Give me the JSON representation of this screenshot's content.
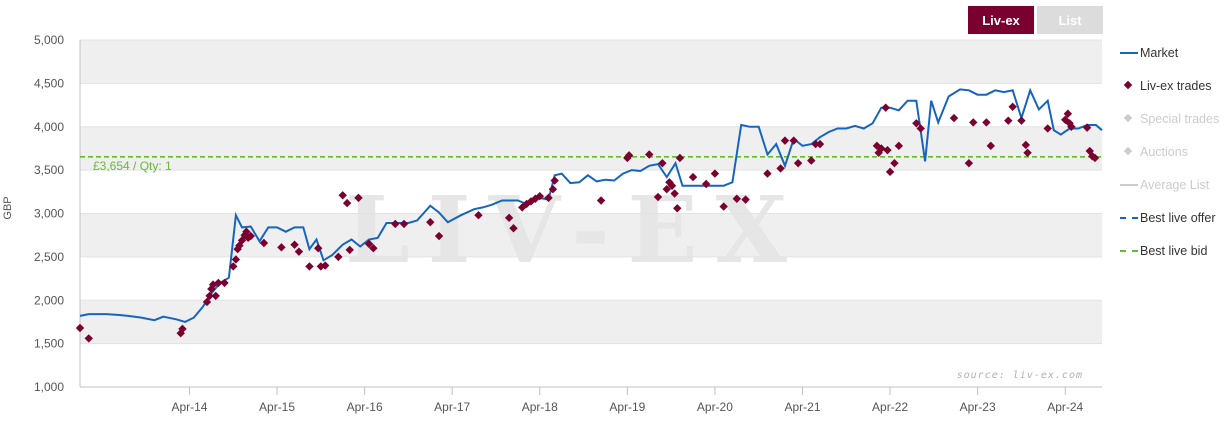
{
  "tabs": {
    "active": "Liv-ex",
    "inactive": "List"
  },
  "colors": {
    "market": "#1565c0",
    "trades": "#7a0030",
    "bid": "#66bb33",
    "muted": "#cccccc",
    "band": "#efefef",
    "tab_active": "#7a0030",
    "tab_inactive": "#dcdcdc"
  },
  "legend": [
    {
      "label": "Market",
      "symbol": "line",
      "color": "#1565c0",
      "active": true
    },
    {
      "label": "Liv-ex trades",
      "symbol": "diamond",
      "color": "#7a0030",
      "active": true
    },
    {
      "label": "Special trades",
      "symbol": "diamond",
      "color": "#cccccc",
      "active": false
    },
    {
      "label": "Auctions",
      "symbol": "diamond",
      "color": "#cccccc",
      "active": false
    },
    {
      "label": "Average List",
      "symbol": "line",
      "color": "#cccccc",
      "active": false
    },
    {
      "label": "Best live offer",
      "symbol": "dash",
      "color": "#1565c0",
      "active": true
    },
    {
      "label": "Best live bid",
      "symbol": "dash",
      "color": "#66bb33",
      "active": true
    }
  ],
  "watermark": "LIV-EX",
  "source": "source: liv-ex.com",
  "bid_label": "£3,654 / Qty: 1",
  "chart_data": {
    "type": "line",
    "ylabel": "GBP",
    "ylim": [
      1000,
      5000
    ],
    "yticks": [
      1000,
      1500,
      2000,
      2500,
      3000,
      3500,
      4000,
      4500,
      5000
    ],
    "ytick_labels": [
      "1,000",
      "1,500",
      "2,000",
      "2,500",
      "3,000",
      "3,500",
      "4,000",
      "4,500",
      "5,000"
    ],
    "xlim": [
      2013.0,
      2024.67
    ],
    "xticks": [
      2014.25,
      2015.25,
      2016.25,
      2017.25,
      2018.25,
      2019.25,
      2020.25,
      2021.25,
      2022.25,
      2023.25,
      2024.25
    ],
    "xtick_labels": [
      "Apr-14",
      "Apr-15",
      "Apr-16",
      "Apr-17",
      "Apr-18",
      "Apr-19",
      "Apr-20",
      "Apr-21",
      "Apr-22",
      "Apr-23",
      "Apr-24"
    ],
    "grid": true,
    "legend_position": "right",
    "best_live_bid": 3654,
    "series": [
      {
        "name": "Market",
        "kind": "line",
        "points": [
          [
            2013.0,
            1820
          ],
          [
            2013.1,
            1840
          ],
          [
            2013.3,
            1840
          ],
          [
            2013.45,
            1830
          ],
          [
            2013.55,
            1820
          ],
          [
            2013.7,
            1800
          ],
          [
            2013.85,
            1770
          ],
          [
            2013.95,
            1810
          ],
          [
            2014.1,
            1780
          ],
          [
            2014.2,
            1750
          ],
          [
            2014.3,
            1800
          ],
          [
            2014.4,
            1920
          ],
          [
            2014.5,
            2080
          ],
          [
            2014.6,
            2200
          ],
          [
            2014.7,
            2260
          ],
          [
            2014.78,
            2980
          ],
          [
            2014.85,
            2840
          ],
          [
            2014.95,
            2850
          ],
          [
            2015.05,
            2680
          ],
          [
            2015.15,
            2840
          ],
          [
            2015.25,
            2840
          ],
          [
            2015.35,
            2790
          ],
          [
            2015.45,
            2840
          ],
          [
            2015.55,
            2840
          ],
          [
            2015.62,
            2590
          ],
          [
            2015.7,
            2700
          ],
          [
            2015.78,
            2460
          ],
          [
            2015.88,
            2520
          ],
          [
            2016.0,
            2640
          ],
          [
            2016.1,
            2700
          ],
          [
            2016.2,
            2620
          ],
          [
            2016.3,
            2700
          ],
          [
            2016.4,
            2720
          ],
          [
            2016.5,
            2890
          ],
          [
            2016.6,
            2890
          ],
          [
            2016.75,
            2890
          ],
          [
            2016.85,
            2920
          ],
          [
            2017.0,
            3090
          ],
          [
            2017.1,
            3010
          ],
          [
            2017.2,
            2900
          ],
          [
            2017.35,
            2980
          ],
          [
            2017.5,
            3050
          ],
          [
            2017.6,
            3070
          ],
          [
            2017.7,
            3100
          ],
          [
            2017.82,
            3150
          ],
          [
            2018.0,
            3150
          ],
          [
            2018.1,
            3110
          ],
          [
            2018.2,
            3190
          ],
          [
            2018.35,
            3160
          ],
          [
            2018.42,
            3440
          ],
          [
            2018.5,
            3460
          ],
          [
            2018.6,
            3350
          ],
          [
            2018.7,
            3360
          ],
          [
            2018.8,
            3440
          ],
          [
            2018.9,
            3370
          ],
          [
            2019.0,
            3390
          ],
          [
            2019.1,
            3380
          ],
          [
            2019.2,
            3460
          ],
          [
            2019.3,
            3500
          ],
          [
            2019.4,
            3490
          ],
          [
            2019.5,
            3550
          ],
          [
            2019.6,
            3570
          ],
          [
            2019.7,
            3420
          ],
          [
            2019.8,
            3580
          ],
          [
            2019.88,
            3320
          ],
          [
            2020.0,
            3320
          ],
          [
            2020.1,
            3320
          ],
          [
            2020.25,
            3320
          ],
          [
            2020.35,
            3320
          ],
          [
            2020.45,
            3360
          ],
          [
            2020.55,
            4020
          ],
          [
            2020.65,
            4000
          ],
          [
            2020.75,
            4000
          ],
          [
            2020.85,
            3680
          ],
          [
            2020.95,
            3800
          ],
          [
            2021.05,
            3550
          ],
          [
            2021.15,
            3860
          ],
          [
            2021.25,
            3780
          ],
          [
            2021.35,
            3800
          ],
          [
            2021.45,
            3880
          ],
          [
            2021.55,
            3940
          ],
          [
            2021.65,
            3980
          ],
          [
            2021.75,
            3980
          ],
          [
            2021.85,
            4010
          ],
          [
            2021.95,
            3980
          ],
          [
            2022.05,
            4040
          ],
          [
            2022.15,
            4220
          ],
          [
            2022.25,
            4220
          ],
          [
            2022.35,
            4190
          ],
          [
            2022.45,
            4300
          ],
          [
            2022.55,
            4300
          ],
          [
            2022.65,
            3600
          ],
          [
            2022.72,
            4300
          ],
          [
            2022.8,
            4050
          ],
          [
            2022.92,
            4350
          ],
          [
            2023.05,
            4430
          ],
          [
            2023.15,
            4420
          ],
          [
            2023.25,
            4370
          ],
          [
            2023.35,
            4370
          ],
          [
            2023.45,
            4420
          ],
          [
            2023.55,
            4400
          ],
          [
            2023.65,
            4420
          ],
          [
            2023.75,
            4100
          ],
          [
            2023.85,
            4420
          ],
          [
            2023.95,
            4200
          ],
          [
            2024.05,
            4300
          ],
          [
            2024.12,
            3960
          ],
          [
            2024.2,
            3910
          ],
          [
            2024.3,
            3980
          ],
          [
            2024.4,
            3980
          ],
          [
            2024.5,
            4020
          ],
          [
            2024.6,
            4020
          ],
          [
            2024.67,
            3960
          ]
        ]
      },
      {
        "name": "Liv-ex trades",
        "kind": "scatter",
        "points": [
          [
            2013.0,
            1680
          ],
          [
            2013.1,
            1560
          ],
          [
            2014.15,
            1620
          ],
          [
            2014.17,
            1670
          ],
          [
            2014.45,
            1980
          ],
          [
            2014.48,
            2050
          ],
          [
            2014.5,
            2130
          ],
          [
            2014.52,
            2180
          ],
          [
            2014.55,
            2050
          ],
          [
            2014.58,
            2200
          ],
          [
            2014.65,
            2200
          ],
          [
            2014.75,
            2390
          ],
          [
            2014.78,
            2470
          ],
          [
            2014.8,
            2590
          ],
          [
            2014.82,
            2630
          ],
          [
            2014.85,
            2690
          ],
          [
            2014.88,
            2750
          ],
          [
            2014.9,
            2790
          ],
          [
            2014.92,
            2720
          ],
          [
            2014.95,
            2740
          ],
          [
            2015.1,
            2660
          ],
          [
            2015.3,
            2610
          ],
          [
            2015.45,
            2640
          ],
          [
            2015.5,
            2560
          ],
          [
            2015.62,
            2390
          ],
          [
            2015.72,
            2600
          ],
          [
            2015.75,
            2390
          ],
          [
            2015.8,
            2400
          ],
          [
            2015.95,
            2500
          ],
          [
            2016.0,
            3210
          ],
          [
            2016.05,
            3120
          ],
          [
            2016.08,
            2580
          ],
          [
            2016.18,
            3180
          ],
          [
            2016.3,
            2650
          ],
          [
            2016.35,
            2600
          ],
          [
            2016.6,
            2880
          ],
          [
            2016.7,
            2880
          ],
          [
            2017.0,
            2900
          ],
          [
            2017.1,
            2740
          ],
          [
            2017.55,
            2980
          ],
          [
            2017.9,
            2950
          ],
          [
            2017.95,
            2830
          ],
          [
            2018.05,
            3070
          ],
          [
            2018.1,
            3110
          ],
          [
            2018.15,
            3140
          ],
          [
            2018.2,
            3170
          ],
          [
            2018.25,
            3200
          ],
          [
            2018.35,
            3180
          ],
          [
            2018.4,
            3280
          ],
          [
            2018.42,
            3380
          ],
          [
            2018.95,
            3150
          ],
          [
            2019.25,
            3640
          ],
          [
            2019.27,
            3670
          ],
          [
            2019.5,
            3680
          ],
          [
            2019.6,
            3190
          ],
          [
            2019.65,
            3580
          ],
          [
            2019.7,
            3280
          ],
          [
            2019.73,
            3360
          ],
          [
            2019.76,
            3320
          ],
          [
            2019.79,
            3230
          ],
          [
            2019.82,
            3060
          ],
          [
            2019.85,
            3640
          ],
          [
            2020.0,
            3420
          ],
          [
            2020.15,
            3340
          ],
          [
            2020.25,
            3460
          ],
          [
            2020.35,
            3080
          ],
          [
            2020.5,
            3170
          ],
          [
            2020.6,
            3160
          ],
          [
            2020.85,
            3460
          ],
          [
            2021.0,
            3520
          ],
          [
            2021.05,
            3840
          ],
          [
            2021.15,
            3840
          ],
          [
            2021.2,
            3580
          ],
          [
            2021.35,
            3610
          ],
          [
            2021.4,
            3800
          ],
          [
            2021.45,
            3800
          ],
          [
            2022.1,
            3780
          ],
          [
            2022.12,
            3700
          ],
          [
            2022.15,
            3750
          ],
          [
            2022.2,
            4220
          ],
          [
            2022.22,
            3730
          ],
          [
            2022.25,
            3480
          ],
          [
            2022.3,
            3580
          ],
          [
            2022.35,
            3780
          ],
          [
            2022.55,
            4040
          ],
          [
            2022.6,
            3980
          ],
          [
            2022.98,
            4100
          ],
          [
            2023.15,
            3580
          ],
          [
            2023.2,
            4050
          ],
          [
            2023.35,
            4050
          ],
          [
            2023.4,
            3780
          ],
          [
            2023.6,
            4070
          ],
          [
            2023.65,
            4230
          ],
          [
            2023.75,
            4070
          ],
          [
            2023.8,
            3790
          ],
          [
            2023.82,
            3700
          ],
          [
            2024.05,
            3980
          ],
          [
            2024.25,
            4080
          ],
          [
            2024.28,
            4150
          ],
          [
            2024.3,
            4040
          ],
          [
            2024.32,
            4000
          ],
          [
            2024.5,
            3990
          ],
          [
            2024.53,
            3720
          ],
          [
            2024.56,
            3660
          ],
          [
            2024.59,
            3640
          ]
        ]
      },
      {
        "name": "Best live bid",
        "kind": "hline",
        "value": 3654
      }
    ]
  }
}
